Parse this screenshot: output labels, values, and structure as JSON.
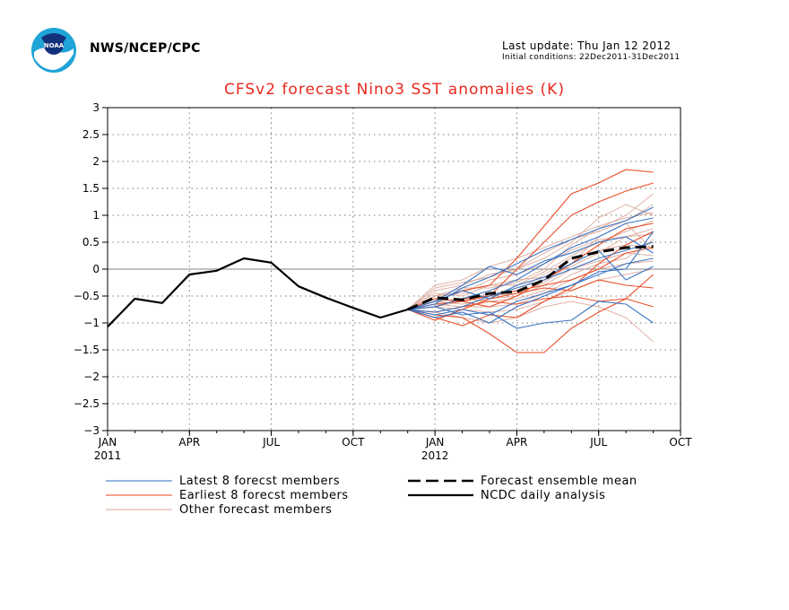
{
  "header": {
    "agency": "NWS/NCEP/CPC",
    "last_update": "Last update: Thu Jan 12 2012",
    "initial_conditions": "Initial conditions: 22Dec2011-31Dec2011"
  },
  "chart_data": {
    "type": "line",
    "title": "CFSv2 forecast Nino3 SST anomalies (K)",
    "xlabel": "",
    "ylabel": "",
    "ylim": [
      -3,
      3
    ],
    "yticks": [
      "3",
      "2.5",
      "2",
      "1.5",
      "1",
      "0.5",
      "0",
      "−0.5",
      "−1",
      "−1.5",
      "−2",
      "−2.5",
      "−3"
    ],
    "x_tick_labels": [
      "JAN",
      "APR",
      "JUL",
      "OCT",
      "JAN",
      "APR",
      "JUL",
      "OCT"
    ],
    "x_year_labels": [
      "2011",
      "2012"
    ],
    "x_months": [
      "2011-01",
      "2011-02",
      "2011-03",
      "2011-04",
      "2011-05",
      "2011-06",
      "2011-07",
      "2011-08",
      "2011-09",
      "2011-10",
      "2011-11",
      "2011-12",
      "2012-01",
      "2012-02",
      "2012-03",
      "2012-04",
      "2012-05",
      "2012-06",
      "2012-07",
      "2012-08",
      "2012-09",
      "2012-10"
    ],
    "grid": true,
    "zero_line": true,
    "colors": {
      "analysis": "#000000",
      "mean": "#000000",
      "latest": "#2f6fc2",
      "earliest": "#e8461e",
      "other": "#d9a597",
      "title": "#e8281e"
    },
    "ncdc_daily_analysis": {
      "name": "NCDC daily analysis",
      "x": [
        "2011-01",
        "2011-02",
        "2011-03",
        "2011-04",
        "2011-05",
        "2011-06",
        "2011-07",
        "2011-08",
        "2011-09",
        "2011-10",
        "2011-11",
        "2011-12"
      ],
      "values": [
        -1.07,
        -0.55,
        -0.63,
        -0.1,
        -0.03,
        0.2,
        0.12,
        -0.32,
        -0.53,
        -0.72,
        -0.9,
        -0.75
      ]
    },
    "forecast_ensemble_mean": {
      "name": "Forecast ensemble mean",
      "x": [
        "2011-12",
        "2012-01",
        "2012-02",
        "2012-03",
        "2012-04",
        "2012-05",
        "2012-06",
        "2012-07",
        "2012-08",
        "2012-09"
      ],
      "values": [
        -0.75,
        -0.53,
        -0.57,
        -0.45,
        -0.42,
        -0.2,
        0.2,
        0.32,
        0.4,
        0.42
      ]
    },
    "forecast_x": [
      "2011-12",
      "2012-01",
      "2012-02",
      "2012-03",
      "2012-04",
      "2012-05",
      "2012-06",
      "2012-07",
      "2012-08",
      "2012-09"
    ],
    "series": [
      {
        "group": "latest",
        "values": [
          -0.75,
          -0.65,
          -0.35,
          -0.15,
          0.1,
          0.35,
          0.55,
          0.75,
          0.9,
          1.15
        ]
      },
      {
        "group": "latest",
        "values": [
          -0.75,
          -0.7,
          -0.55,
          -0.4,
          -0.2,
          0.1,
          0.4,
          0.6,
          0.85,
          0.95
        ]
      },
      {
        "group": "latest",
        "values": [
          -0.75,
          -0.6,
          -0.3,
          0.05,
          -0.1,
          0.15,
          0.3,
          0.5,
          0.6,
          0.3
        ]
      },
      {
        "group": "latest",
        "values": [
          -0.75,
          -0.8,
          -0.7,
          -0.5,
          -0.35,
          -0.2,
          0.0,
          0.2,
          0.35,
          0.5
        ]
      },
      {
        "group": "latest",
        "values": [
          -0.75,
          -0.85,
          -0.75,
          -0.85,
          -0.6,
          -0.45,
          -0.3,
          -0.1,
          0.1,
          0.2
        ]
      },
      {
        "group": "latest",
        "values": [
          -0.75,
          -0.7,
          -0.85,
          -0.8,
          -1.1,
          -1.0,
          -0.95,
          -0.6,
          -0.65,
          -1.0
        ]
      },
      {
        "group": "latest",
        "values": [
          -0.75,
          -0.6,
          -0.4,
          -0.55,
          -0.3,
          -0.15,
          0.1,
          0.35,
          -0.2,
          0.05
        ]
      },
      {
        "group": "latest",
        "values": [
          -0.75,
          -0.9,
          -0.8,
          -1.0,
          -0.7,
          -0.5,
          -0.3,
          -0.05,
          0.0,
          0.7
        ]
      },
      {
        "group": "earliest",
        "values": [
          -0.75,
          -0.6,
          -0.4,
          -0.3,
          0.2,
          0.8,
          1.4,
          1.6,
          1.85,
          1.8
        ]
      },
      {
        "group": "earliest",
        "values": [
          -0.75,
          -0.7,
          -0.55,
          -0.5,
          0.0,
          0.5,
          1.0,
          1.25,
          1.45,
          1.6
        ]
      },
      {
        "group": "earliest",
        "values": [
          -0.75,
          -0.85,
          -0.9,
          -1.2,
          -1.55,
          -1.55,
          -1.1,
          -0.8,
          -0.55,
          -0.1
        ]
      },
      {
        "group": "earliest",
        "values": [
          -0.75,
          -0.9,
          -1.05,
          -0.85,
          -0.9,
          -0.6,
          -0.35,
          0.1,
          0.45,
          0.7
        ]
      },
      {
        "group": "earliest",
        "values": [
          -0.75,
          -0.65,
          -0.6,
          -0.7,
          -0.5,
          -0.2,
          0.1,
          0.45,
          0.75,
          0.85
        ]
      },
      {
        "group": "earliest",
        "values": [
          -0.75,
          -0.8,
          -0.7,
          -0.6,
          -0.65,
          -0.55,
          -0.5,
          -0.6,
          -0.55,
          -0.7
        ]
      },
      {
        "group": "earliest",
        "values": [
          -0.75,
          -0.55,
          -0.6,
          -0.5,
          -0.4,
          -0.3,
          -0.2,
          0.0,
          0.3,
          0.4
        ]
      },
      {
        "group": "earliest",
        "values": [
          -0.75,
          -0.95,
          -0.75,
          -0.55,
          -0.45,
          -0.35,
          -0.4,
          -0.2,
          -0.3,
          -0.35
        ]
      },
      {
        "group": "other",
        "values": [
          -0.75,
          -0.3,
          -0.2,
          0.05,
          0.2,
          0.4,
          0.6,
          0.8,
          0.95,
          1.05
        ]
      },
      {
        "group": "other",
        "values": [
          -0.75,
          -0.4,
          -0.3,
          -0.1,
          0.0,
          0.3,
          0.55,
          0.7,
          0.9,
          1.2
        ]
      },
      {
        "group": "other",
        "values": [
          -0.75,
          -0.5,
          -0.45,
          -0.2,
          -0.1,
          0.1,
          0.35,
          0.55,
          0.6,
          0.75
        ]
      },
      {
        "group": "other",
        "values": [
          -0.75,
          -0.55,
          -0.6,
          -0.45,
          -0.4,
          -0.1,
          0.2,
          0.35,
          0.45,
          0.4
        ]
      },
      {
        "group": "other",
        "values": [
          -0.75,
          -0.6,
          -0.65,
          -0.55,
          -0.5,
          -0.3,
          0.0,
          0.15,
          0.3,
          0.25
        ]
      },
      {
        "group": "other",
        "values": [
          -0.75,
          -0.65,
          -0.7,
          -0.7,
          -0.65,
          -0.45,
          -0.2,
          0.0,
          0.1,
          0.15
        ]
      },
      {
        "group": "other",
        "values": [
          -0.75,
          -0.5,
          -0.35,
          -0.35,
          -0.25,
          0.0,
          0.45,
          0.75,
          1.0,
          1.4
        ]
      },
      {
        "group": "other",
        "values": [
          -0.75,
          -0.7,
          -0.75,
          -0.8,
          -0.75,
          -0.6,
          -0.4,
          -0.2,
          -0.1,
          0.0
        ]
      },
      {
        "group": "other",
        "values": [
          -0.75,
          -0.45,
          -0.5,
          -0.3,
          -0.3,
          -0.05,
          0.25,
          0.5,
          0.7,
          0.9
        ]
      },
      {
        "group": "other",
        "values": [
          -0.75,
          -0.8,
          -0.9,
          -1.0,
          -0.9,
          -0.7,
          -0.6,
          -0.7,
          -0.9,
          -1.35
        ]
      },
      {
        "group": "other",
        "values": [
          -0.75,
          -0.35,
          -0.25,
          -0.15,
          0.0,
          0.2,
          0.5,
          0.95,
          1.2,
          1.0
        ]
      },
      {
        "group": "other",
        "values": [
          -0.75,
          -0.6,
          -0.55,
          -0.6,
          -0.55,
          -0.4,
          -0.1,
          0.1,
          0.2,
          0.55
        ]
      },
      {
        "group": "other",
        "values": [
          -0.75,
          -0.55,
          -0.4,
          -0.3,
          -0.2,
          -0.15,
          0.05,
          0.3,
          0.6,
          0.65
        ]
      },
      {
        "group": "other",
        "values": [
          -0.75,
          -0.7,
          -0.6,
          -0.5,
          -0.45,
          -0.25,
          0.1,
          0.6,
          0.85,
          0.35
        ]
      }
    ],
    "legend": [
      {
        "label": "Latest 8 forecst members",
        "style": "latest"
      },
      {
        "label": "Earliest 8 forecst members",
        "style": "earliest"
      },
      {
        "label": "Other forecast members",
        "style": "other"
      },
      {
        "label": "Forecast ensemble mean",
        "style": "mean"
      },
      {
        "label": "NCDC daily analysis",
        "style": "analysis"
      }
    ]
  }
}
